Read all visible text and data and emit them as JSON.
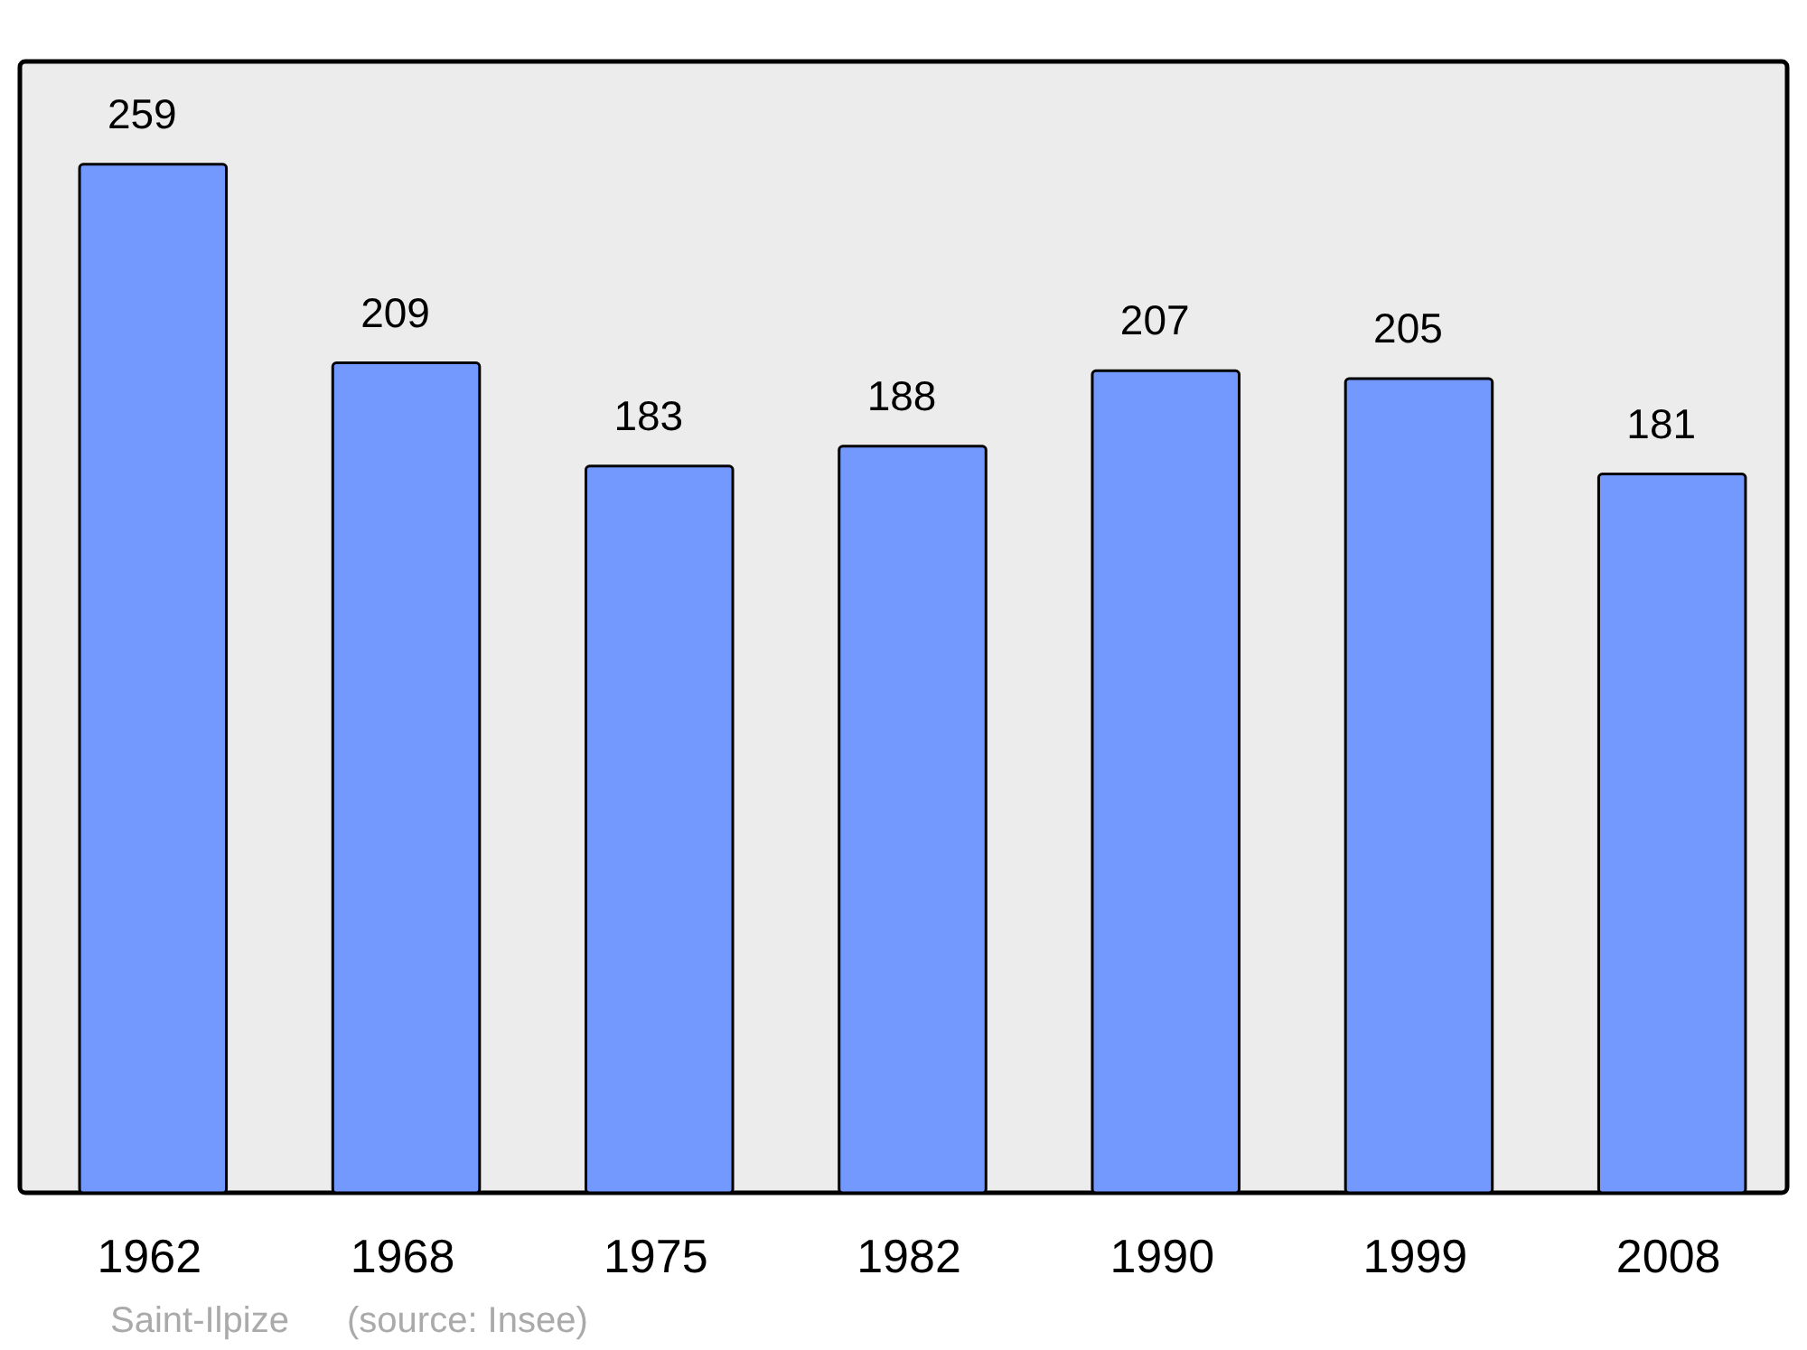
{
  "chart_data": {
    "type": "bar",
    "categories": [
      "1962",
      "1968",
      "1975",
      "1982",
      "1990",
      "1999",
      "2008"
    ],
    "values": [
      259,
      209,
      183,
      188,
      207,
      205,
      181
    ],
    "color": "#7399ff",
    "data_labels": true,
    "annotations": [
      "Saint-Ilpize",
      "(source: Insee)"
    ]
  }
}
